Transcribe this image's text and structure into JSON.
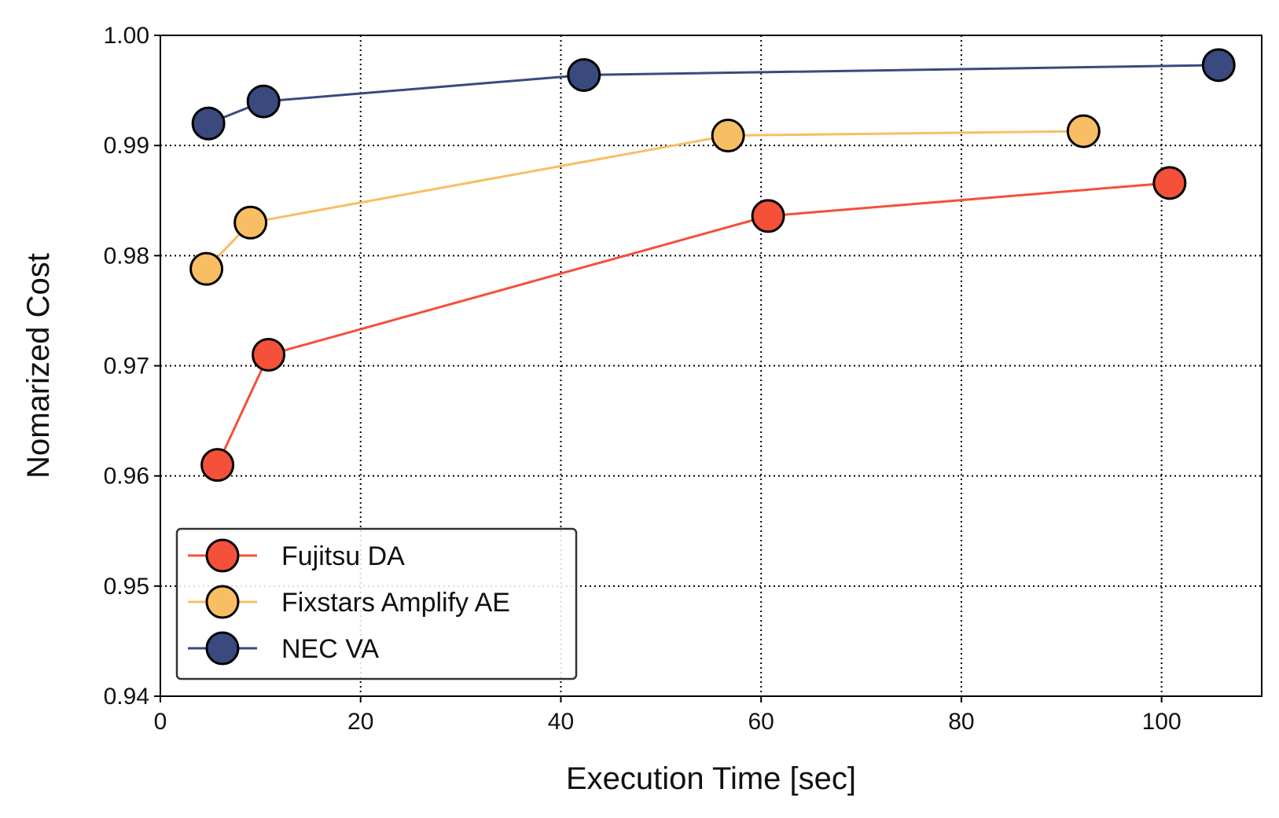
{
  "chart_data": {
    "type": "line",
    "title": "",
    "xlabel": "Execution Time [sec]",
    "ylabel": "Nomarized Cost",
    "xlim": [
      0,
      110
    ],
    "ylim": [
      0.94,
      1.0
    ],
    "xticks": [
      0,
      20,
      40,
      60,
      80,
      100
    ],
    "xtick_labels": [
      "0",
      "20",
      "40",
      "60",
      "80",
      "100"
    ],
    "yticks": [
      0.94,
      0.95,
      0.96,
      0.97,
      0.98,
      0.99,
      1.0
    ],
    "ytick_labels": [
      "0.94",
      "0.95",
      "0.96",
      "0.97",
      "0.98",
      "0.99",
      "1.00"
    ],
    "grid": true,
    "legend_position": "lower-left",
    "series": [
      {
        "name": "Fujitsu DA",
        "color": "#F4503A",
        "x": [
          5.7,
          10.8,
          60.7,
          100.8
        ],
        "y": [
          0.961,
          0.971,
          0.9836,
          0.9866
        ]
      },
      {
        "name": "Fixstars Amplify AE",
        "color": "#F8BE63",
        "x": [
          4.6,
          9.0,
          56.7,
          92.2
        ],
        "y": [
          0.9788,
          0.983,
          0.9909,
          0.9913
        ]
      },
      {
        "name": "NEC VA",
        "color": "#3A4A7F",
        "x": [
          4.8,
          10.3,
          42.3,
          105.7
        ],
        "y": [
          0.992,
          0.994,
          0.9964,
          0.9973
        ]
      }
    ]
  }
}
